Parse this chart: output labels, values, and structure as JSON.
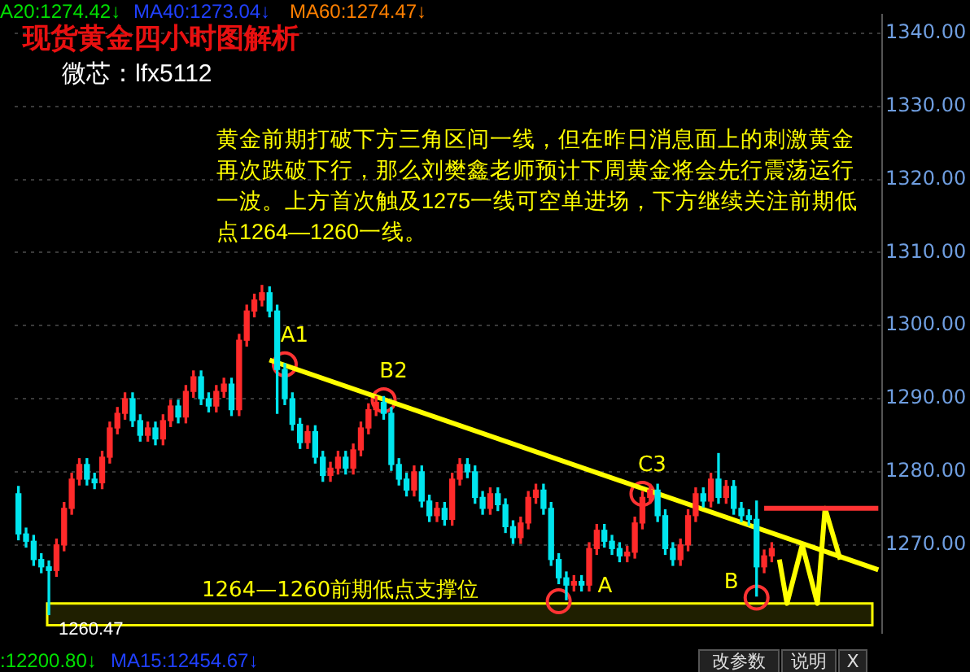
{
  "chart_data": {
    "type": "candlestick",
    "title": "现货黄金四小时图解析",
    "subtitle": "微芯：lfx5112",
    "annotations": [
      "A20:1274.42↓",
      "MA40:1273.04↓",
      "MA60:1274.47↓",
      "黄金前期打破下方三角区间一线，但在昨日消息面上的刺激黄金再次跌破下行，那么刘樊鑫老师预计下周黄金将会先行震荡运行一波。上方首次触及1275一线可空单进场，下方继续关注前期低点1264—1260一线。",
      "1260.47",
      ":12200.80↓",
      "MA15:12454.67↓",
      "改参数",
      "说明",
      "X"
    ],
    "categories": [
      null,
      null,
      null,
      null,
      null,
      null,
      null,
      null,
      null,
      null,
      null,
      null,
      null,
      null,
      null,
      null,
      null,
      null,
      null,
      null,
      null,
      null,
      null,
      null,
      null,
      null,
      null,
      null,
      null,
      null,
      null,
      null,
      null,
      null,
      null,
      null,
      null,
      null,
      null,
      null,
      null,
      null,
      null,
      null,
      null,
      null,
      null,
      null,
      null,
      null,
      null,
      null,
      null,
      null,
      null,
      null,
      null,
      null,
      null,
      null,
      null,
      null,
      null,
      null,
      null,
      null,
      null,
      null,
      null,
      null,
      null,
      null,
      null,
      null,
      null,
      null,
      null,
      null,
      null,
      null,
      null,
      null,
      null,
      null,
      null,
      null,
      null,
      null,
      null,
      null,
      null,
      null,
      null,
      null,
      null,
      null,
      null,
      null,
      null,
      null,
      null,
      null,
      null,
      null,
      null,
      null,
      null,
      null,
      null,
      null,
      null,
      null,
      null,
      null
    ],
    "colors": [
      "#00e5ee",
      "#00e5ee",
      "#00e5ee",
      "#00e5ee",
      "#00e5ee",
      "#ff2a2a",
      "#ff2a2a",
      "#ff2a2a",
      "#ff2a2a",
      "#00e5ee",
      "#00e5ee",
      "#ff2a2a",
      "#ff2a2a",
      "#ff2a2a",
      "#ff2a2a",
      "#00e5ee",
      "#00e5ee",
      "#ff2a2a",
      "#00e5ee",
      "#ff2a2a",
      "#ff2a2a",
      "#00e5ee",
      "#ff2a2a",
      "#ff2a2a",
      "#00e5ee",
      "#00e5ee",
      "#ff2a2a",
      "#ff2a2a",
      "#00e5ee",
      "#ff2a2a",
      "#ff2a2a",
      "#ff2a2a",
      "#ff2a2a",
      "#00e5ee",
      "#00e5ee",
      "#00e5ee",
      "#00e5ee",
      "#00e5ee",
      "#ff2a2a",
      "#00e5ee",
      "#00e5ee",
      "#ff2a2a",
      "#ff2a2a",
      "#00e5ee",
      "#ff2a2a",
      "#ff2a2a",
      "#ff2a2a",
      "#ff2a2a",
      "#00e5ee",
      "#00e5ee",
      "#00e5ee",
      "#00e5ee",
      "#ff2a2a",
      "#00e5ee",
      "#00e5ee",
      "#ff2a2a",
      "#00e5ee",
      "#ff2a2a",
      "#ff2a2a",
      "#00e5ee",
      "#00e5ee",
      "#00e5ee",
      "#ff2a2a",
      "#00e5ee",
      "#00e5ee",
      "#00e5ee",
      "#ff2a2a",
      "#ff2a2a",
      "#ff2a2a",
      "#00e5ee",
      "#00e5ee",
      "#00e5ee",
      "#00e5ee",
      "#ff2a2a",
      "#00e5ee",
      "#ff2a2a",
      "#ff2a2a",
      "#00e5ee",
      "#00e5ee",
      "#00e5ee",
      "#ff2a2a",
      "#ff2a2a",
      "#ff2a2a",
      "#ff2a2a",
      "#00e5ee",
      "#00e5ee",
      "#00e5ee",
      "#ff2a2a",
      "#ff2a2a",
      "#ff2a2a",
      "#00e5ee",
      "#ff2a2a",
      "#00e5ee",
      "#ff2a2a",
      "#00e5ee",
      "#00e5ee",
      "#00e5ee",
      "#00e5ee",
      "#ff2a2a",
      "#ff2a2a",
      null,
      null,
      null,
      null,
      null,
      null,
      null,
      null,
      null,
      null,
      null,
      null,
      null,
      null
    ],
    "ohlc": [
      [
        1277,
        1278,
        1270.7,
        1271.5
      ],
      [
        1271.5,
        1272.3,
        1269.7,
        1270.5
      ],
      [
        1270.5,
        1271.3,
        1267.2,
        1268
      ],
      [
        1268,
        1268.8,
        1266.2,
        1267
      ],
      [
        1267,
        1267.8,
        1260.47,
        1266.5
      ],
      [
        1266.5,
        1270.8,
        1265.7,
        1270
      ],
      [
        1270,
        1275.8,
        1269.2,
        1275
      ],
      [
        1275,
        1279.8,
        1274.2,
        1279
      ],
      [
        1279,
        1281.8,
        1278.2,
        1281
      ],
      [
        1281,
        1281.8,
        1278.2,
        1279
      ],
      [
        1279,
        1279.8,
        1277.7,
        1278.5
      ],
      [
        1278.5,
        1282.8,
        1277.7,
        1282
      ],
      [
        1282,
        1286.8,
        1281.2,
        1286
      ],
      [
        1286,
        1288.8,
        1285.2,
        1288
      ],
      [
        1288,
        1290.8,
        1287.2,
        1290
      ],
      [
        1290,
        1290.8,
        1286.2,
        1287
      ],
      [
        1287,
        1287.8,
        1284.2,
        1285
      ],
      [
        1285,
        1286.8,
        1284.2,
        1286
      ],
      [
        1286,
        1286.8,
        1283.7,
        1284.5
      ],
      [
        1284.5,
        1287.8,
        1283.7,
        1287
      ],
      [
        1287,
        1289.8,
        1286.2,
        1289
      ],
      [
        1289,
        1289.8,
        1286.7,
        1287.5
      ],
      [
        1287.5,
        1291.8,
        1286.7,
        1291
      ],
      [
        1291,
        1293.8,
        1290.2,
        1293
      ],
      [
        1293,
        1293.8,
        1289.2,
        1290
      ],
      [
        1290,
        1290.8,
        1288.2,
        1289
      ],
      [
        1289,
        1291.8,
        1288.2,
        1291
      ],
      [
        1291,
        1292.8,
        1290.2,
        1292
      ],
      [
        1292,
        1292.8,
        1287.7,
        1288.5
      ],
      [
        1288.5,
        1298.8,
        1287.7,
        1298
      ],
      [
        1298,
        1302.8,
        1297.2,
        1302
      ],
      [
        1302,
        1304.3,
        1301.2,
        1303.5
      ],
      [
        1303.5,
        1305.5,
        1302.7,
        1304.5
      ],
      [
        1304.5,
        1305.3,
        1301.2,
        1302
      ],
      [
        1302,
        1302.8,
        1288,
        1294
      ],
      [
        1294,
        1294.8,
        1289.2,
        1290
      ],
      [
        1290,
        1290.8,
        1285.7,
        1286.5
      ],
      [
        1286.5,
        1287.3,
        1283.2,
        1284
      ],
      [
        1284,
        1286.3,
        1283.2,
        1285.5
      ],
      [
        1285.5,
        1286.3,
        1281.2,
        1282
      ],
      [
        1282,
        1282.8,
        1278.7,
        1279.5
      ],
      [
        1279.5,
        1281.3,
        1278.7,
        1280.5
      ],
      [
        1280.5,
        1282.8,
        1279.7,
        1282
      ],
      [
        1282,
        1282.8,
        1279.7,
        1280.5
      ],
      [
        1280.5,
        1283.8,
        1279.7,
        1283
      ],
      [
        1283,
        1286.8,
        1282.2,
        1286
      ],
      [
        1286,
        1289.3,
        1285.2,
        1288.5
      ],
      [
        1288.5,
        1290.3,
        1287.7,
        1289.5
      ],
      [
        1289.5,
        1290.3,
        1287.2,
        1288
      ],
      [
        1288,
        1288.8,
        1280.2,
        1281
      ],
      [
        1281,
        1281.8,
        1278.2,
        1279
      ],
      [
        1279,
        1279.8,
        1276.7,
        1277.5
      ],
      [
        1277.5,
        1280.8,
        1276.7,
        1280
      ],
      [
        1280,
        1280.8,
        1275.2,
        1276
      ],
      [
        1276,
        1276.8,
        1273.2,
        1274
      ],
      [
        1274,
        1275.8,
        1273.2,
        1275
      ],
      [
        1275,
        1275.8,
        1272.7,
        1273.5
      ],
      [
        1273.5,
        1279.8,
        1272.7,
        1279
      ],
      [
        1279,
        1281.8,
        1278.2,
        1281
      ],
      [
        1281,
        1281.8,
        1279.2,
        1280
      ],
      [
        1280,
        1280.8,
        1275.7,
        1276.5
      ],
      [
        1276.5,
        1277.3,
        1274.2,
        1275
      ],
      [
        1275,
        1277.8,
        1274.2,
        1277
      ],
      [
        1277,
        1277.8,
        1274.7,
        1275.5
      ],
      [
        1275.5,
        1276.3,
        1271.7,
        1272.5
      ],
      [
        1272.5,
        1273.3,
        1270.2,
        1271
      ],
      [
        1271,
        1273.8,
        1270.2,
        1273
      ],
      [
        1273,
        1277.3,
        1272.2,
        1276.5
      ],
      [
        1276.5,
        1278.3,
        1275.7,
        1277.5
      ],
      [
        1277.5,
        1278.3,
        1274.2,
        1275
      ],
      [
        1275,
        1275.8,
        1267.2,
        1268
      ],
      [
        1268,
        1268.8,
        1264.7,
        1265.5
      ],
      [
        1265.5,
        1266.3,
        1262.5,
        1264.5
      ],
      [
        1264.5,
        1265.8,
        1263.7,
        1265
      ],
      [
        1265,
        1265.8,
        1263.7,
        1264.5
      ],
      [
        1264.5,
        1270.3,
        1263.7,
        1269.5
      ],
      [
        1269.5,
        1272.8,
        1268.7,
        1272
      ],
      [
        1272,
        1272.8,
        1269.7,
        1270.5
      ],
      [
        1270.5,
        1271.3,
        1268.7,
        1269.5
      ],
      [
        1269.5,
        1270.3,
        1267.7,
        1268.5
      ],
      [
        1268.5,
        1269.8,
        1267.7,
        1269
      ],
      [
        1269,
        1273.8,
        1268.2,
        1273
      ],
      [
        1273,
        1277.3,
        1272.2,
        1276.5
      ],
      [
        1276.5,
        1278.3,
        1275.7,
        1277.5
      ],
      [
        1277.5,
        1278.3,
        1273.2,
        1274
      ],
      [
        1274,
        1274.8,
        1268.7,
        1269.5
      ],
      [
        1269.5,
        1270.3,
        1267.2,
        1268
      ],
      [
        1268,
        1270.8,
        1267.2,
        1270
      ],
      [
        1270,
        1274.8,
        1269.2,
        1274
      ],
      [
        1274,
        1277.8,
        1273.2,
        1277
      ],
      [
        1277,
        1277.8,
        1275.2,
        1276
      ],
      [
        1276,
        1279.8,
        1275.2,
        1279
      ],
      [
        1279,
        1282.5,
        1275.7,
        1276.5
      ],
      [
        1276.5,
        1278.8,
        1275.7,
        1278
      ],
      [
        1278,
        1278.8,
        1274.2,
        1275
      ],
      [
        1275,
        1275.8,
        1273.2,
        1274
      ],
      [
        1274,
        1274.8,
        1272.7,
        1273.5
      ],
      [
        1273.5,
        1276,
        1263,
        1267
      ],
      [
        1267,
        1269.3,
        1266.2,
        1268.5
      ],
      [
        1268.5,
        1270.3,
        1267.7,
        1269.5
      ],
      null,
      null,
      null,
      null,
      null,
      null,
      null,
      null,
      null,
      null,
      null,
      null,
      null,
      null
    ],
    "series": [
      {
        "type": "line",
        "color": "#ffff00",
        "values": [
          null,
          null,
          null,
          null,
          null,
          null,
          null,
          null,
          null,
          null,
          null,
          null,
          null,
          null,
          null,
          null,
          null,
          null,
          null,
          null,
          null,
          null,
          null,
          null,
          null,
          null,
          null,
          null,
          null,
          null,
          null,
          null,
          null,
          1295.3,
          null,
          null,
          null,
          null,
          null,
          null,
          null,
          null,
          null,
          null,
          null,
          null,
          null,
          null,
          null,
          null,
          null,
          null,
          null,
          null,
          null,
          null,
          null,
          null,
          null,
          null,
          null,
          null,
          null,
          null,
          null,
          null,
          null,
          null,
          null,
          null,
          null,
          null,
          null,
          null,
          null,
          null,
          null,
          null,
          null,
          null,
          null,
          null,
          null,
          null,
          null,
          null,
          null,
          null,
          null,
          null,
          null,
          null,
          null,
          null,
          null,
          null,
          null,
          null,
          null,
          null,
          null,
          null,
          null,
          null,
          null,
          null,
          null,
          null,
          null,
          null,
          null,
          null,
          null,
          1266.6
        ]
      },
      {
        "type": "scatter",
        "color": "#ff3333",
        "marker": "circle",
        "values": [
          null,
          null,
          null,
          null,
          null,
          null,
          null,
          null,
          null,
          null,
          null,
          null,
          null,
          null,
          null,
          null,
          null,
          null,
          null,
          null,
          null,
          null,
          null,
          null,
          null,
          null,
          null,
          null,
          null,
          null,
          null,
          null,
          null,
          null,
          null,
          1294.7,
          null,
          null,
          null,
          null,
          null,
          null,
          null,
          null,
          null,
          null,
          null,
          null,
          1289.8,
          null,
          null,
          null,
          null,
          null,
          null,
          null,
          null,
          null,
          null,
          null,
          null,
          null,
          null,
          null,
          null,
          null,
          null,
          null,
          null,
          null,
          null,
          1262.3,
          null,
          null,
          null,
          null,
          null,
          null,
          null,
          null,
          null,
          null,
          1277,
          null,
          null,
          null,
          null,
          null,
          null,
          null,
          null,
          null,
          null,
          null,
          null,
          null,
          null,
          1262.8,
          null,
          null,
          null,
          null,
          null,
          null,
          null,
          null,
          null,
          null,
          null,
          null,
          null,
          null,
          null,
          null
        ],
        "value_labels": [
          null,
          null,
          null,
          null,
          null,
          null,
          null,
          null,
          null,
          null,
          null,
          null,
          null,
          null,
          null,
          null,
          null,
          null,
          null,
          null,
          null,
          null,
          null,
          null,
          null,
          null,
          null,
          null,
          null,
          null,
          null,
          null,
          null,
          null,
          null,
          "A1",
          null,
          null,
          null,
          null,
          null,
          null,
          null,
          null,
          null,
          null,
          null,
          null,
          "B2",
          null,
          null,
          null,
          null,
          null,
          null,
          null,
          null,
          null,
          null,
          null,
          null,
          null,
          null,
          null,
          null,
          null,
          null,
          null,
          null,
          null,
          null,
          "A",
          null,
          null,
          null,
          null,
          null,
          null,
          null,
          null,
          null,
          null,
          "C3",
          null,
          null,
          null,
          null,
          null,
          null,
          null,
          null,
          null,
          null,
          null,
          null,
          null,
          null,
          "B",
          null,
          null,
          null,
          null,
          null,
          null,
          null,
          null,
          null,
          null,
          null,
          null,
          null,
          null,
          null,
          null
        ]
      },
      {
        "type": "line",
        "color": "#ff3333",
        "values": [
          null,
          null,
          null,
          null,
          null,
          null,
          null,
          null,
          null,
          null,
          null,
          null,
          null,
          null,
          null,
          null,
          null,
          null,
          null,
          null,
          null,
          null,
          null,
          null,
          null,
          null,
          null,
          null,
          null,
          null,
          null,
          null,
          null,
          null,
          null,
          null,
          null,
          null,
          null,
          null,
          null,
          null,
          null,
          null,
          null,
          null,
          null,
          null,
          null,
          null,
          null,
          null,
          null,
          null,
          null,
          null,
          null,
          null,
          null,
          null,
          null,
          null,
          null,
          null,
          null,
          null,
          null,
          null,
          null,
          null,
          null,
          null,
          null,
          null,
          null,
          null,
          null,
          null,
          null,
          null,
          null,
          null,
          null,
          null,
          null,
          null,
          null,
          null,
          null,
          null,
          null,
          null,
          null,
          null,
          null,
          null,
          null,
          null,
          1275,
          null,
          null,
          null,
          null,
          null,
          null,
          null,
          null,
          null,
          null,
          null,
          null,
          null,
          null,
          1275
        ]
      },
      {
        "type": "line",
        "color": "#ffff00",
        "values": [
          null,
          null,
          null,
          null,
          null,
          null,
          null,
          null,
          null,
          null,
          null,
          null,
          null,
          null,
          null,
          null,
          null,
          null,
          null,
          null,
          null,
          null,
          null,
          null,
          null,
          null,
          null,
          null,
          null,
          null,
          null,
          null,
          null,
          null,
          null,
          null,
          null,
          null,
          null,
          null,
          null,
          null,
          null,
          null,
          null,
          null,
          null,
          null,
          null,
          null,
          null,
          null,
          null,
          null,
          null,
          null,
          null,
          null,
          null,
          null,
          null,
          null,
          null,
          null,
          null,
          null,
          null,
          null,
          null,
          null,
          null,
          null,
          null,
          null,
          null,
          null,
          null,
          null,
          null,
          null,
          null,
          null,
          null,
          null,
          null,
          null,
          null,
          null,
          null,
          null,
          null,
          null,
          null,
          null,
          null,
          null,
          null,
          null,
          null,
          null,
          1268,
          1262,
          null,
          1270,
          null,
          1262,
          1275,
          null,
          1268,
          null,
          null,
          null,
          null,
          null
        ]
      }
    ],
    "bands": [
      {
        "axis": "y",
        "from": 1259,
        "to": 1262,
        "label": "1264—1260前期低点支撑位",
        "color": "#ffff00"
      }
    ],
    "ylim": [
      1258,
      1342.5
    ],
    "yticks": [
      {
        "value": 1270,
        "label": "1270.00"
      },
      {
        "value": 1280,
        "label": "1280.00"
      },
      {
        "value": 1290,
        "label": "1290.00"
      },
      {
        "value": 1300,
        "label": "1300.00"
      },
      {
        "value": 1310,
        "label": "1310.00"
      },
      {
        "value": 1320,
        "label": "1320.00"
      },
      {
        "value": 1330,
        "label": "1330.00"
      },
      {
        "value": 1340,
        "label": "1340.00"
      }
    ],
    "grid": "y",
    "tick_labels": "y"
  }
}
